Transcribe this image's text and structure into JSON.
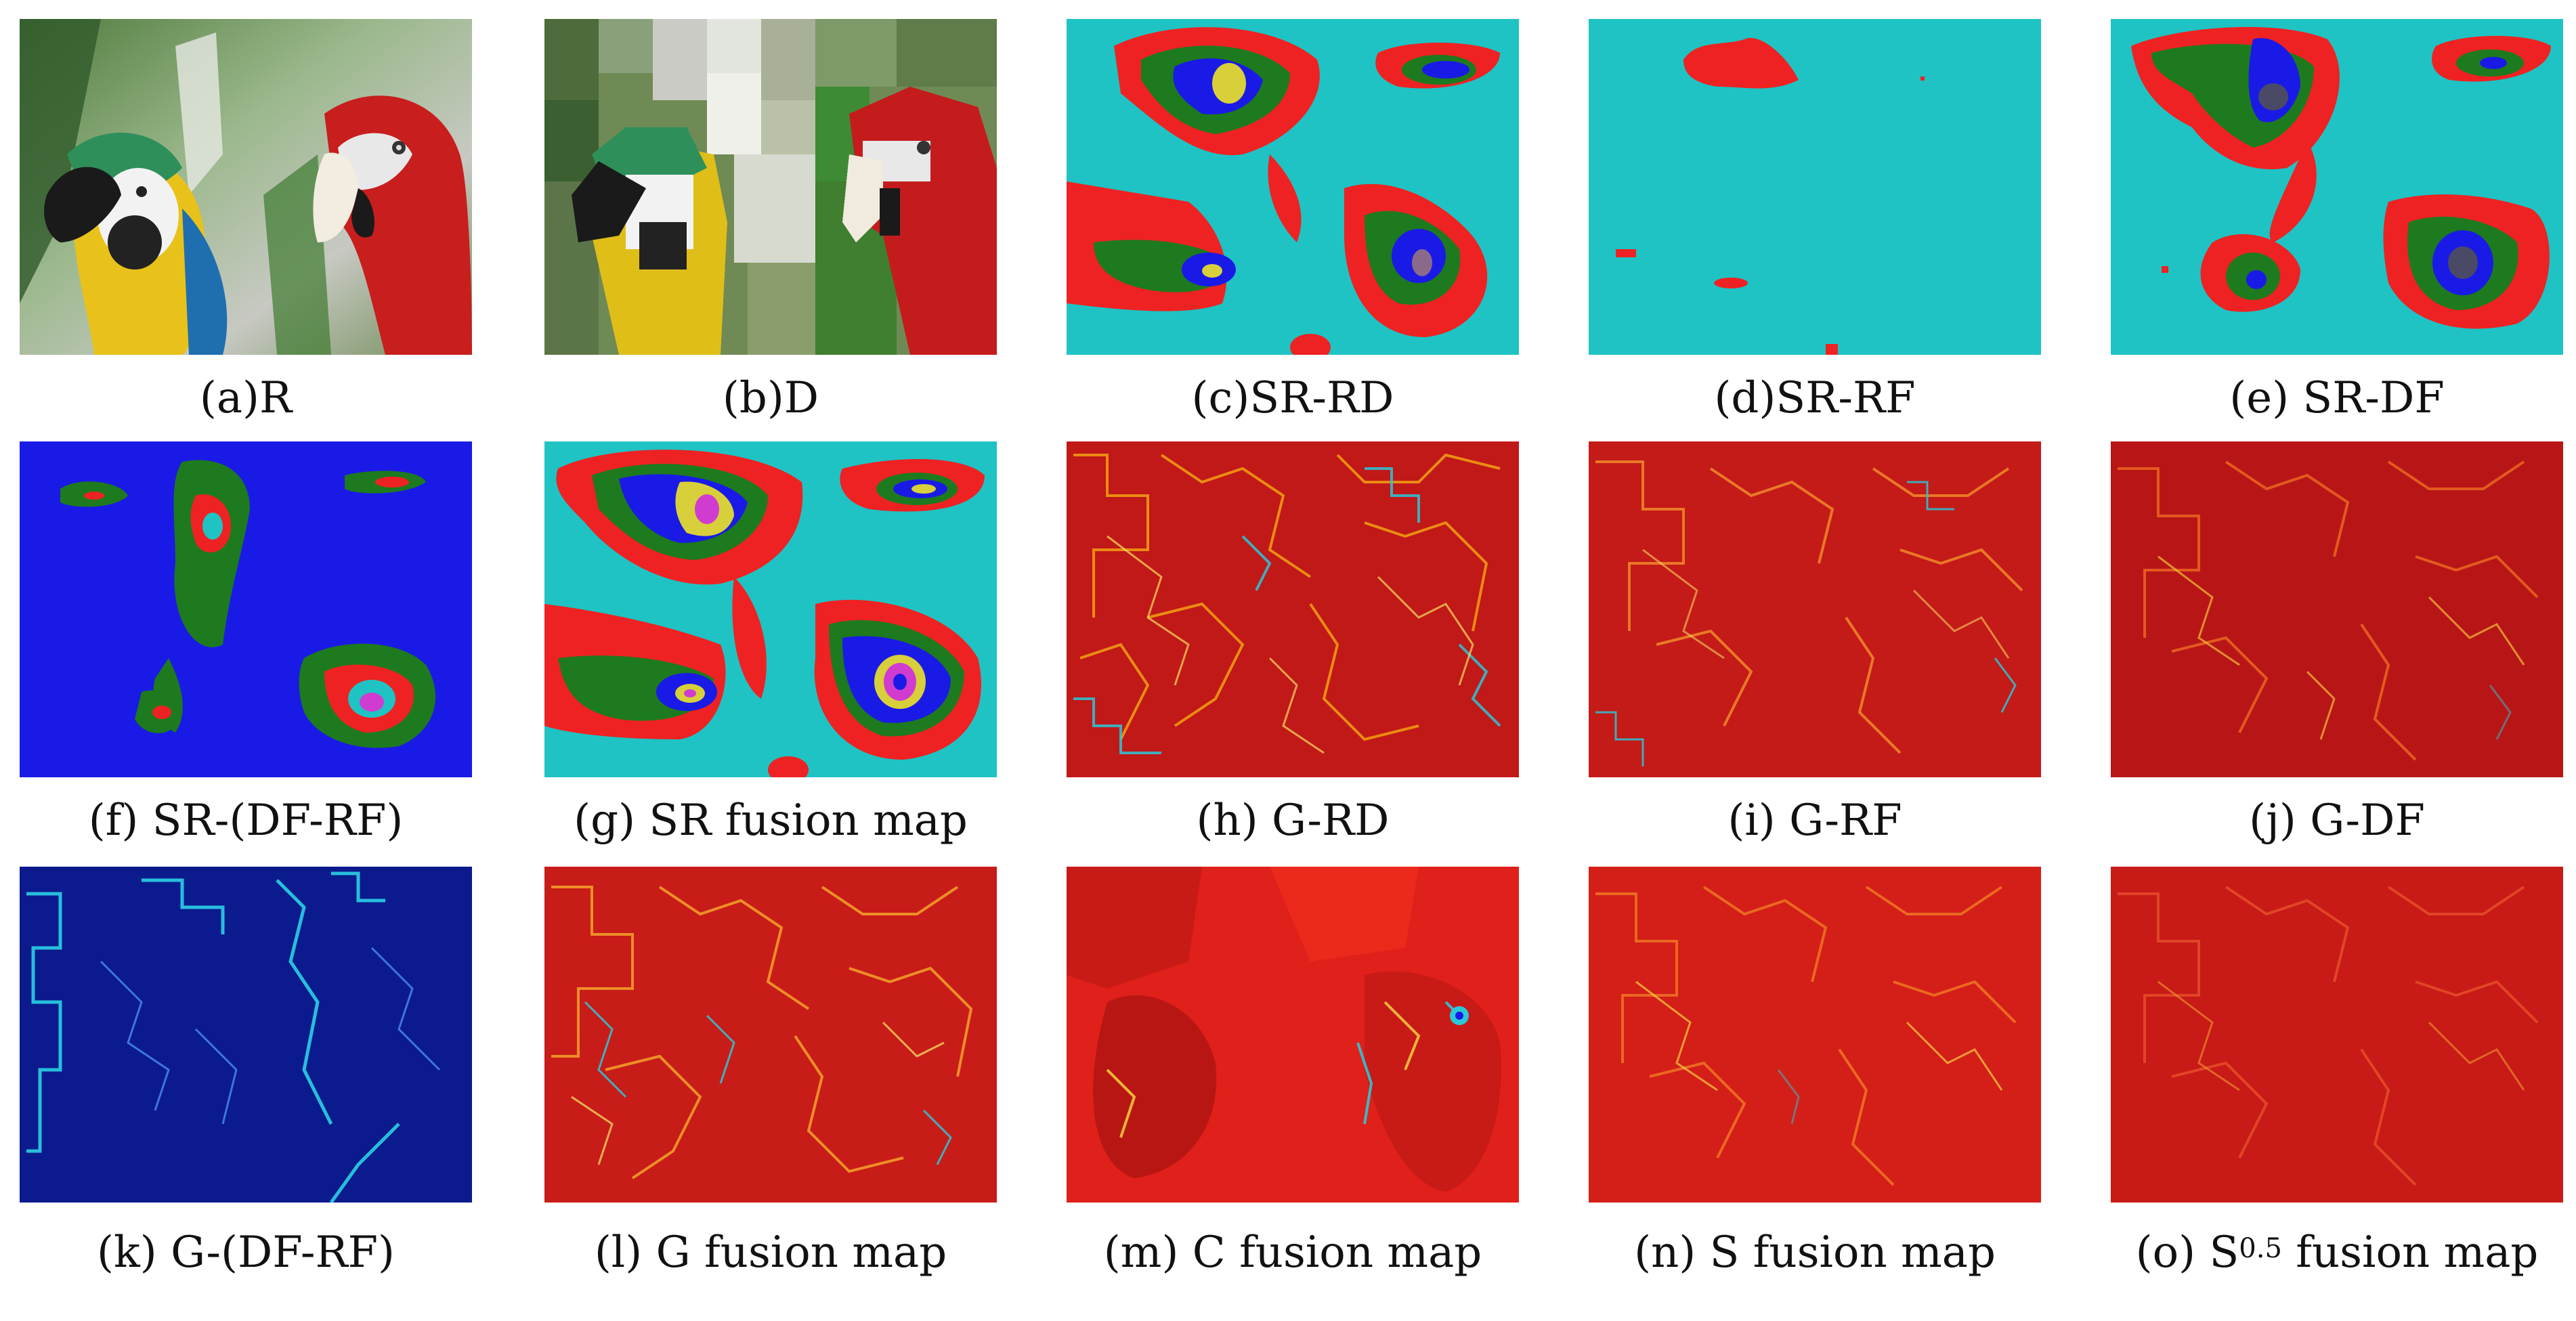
{
  "figure": {
    "panels": [
      {
        "id": "a",
        "caption": "(a)R",
        "kind": "photo"
      },
      {
        "id": "b",
        "caption": "(b)D",
        "kind": "pixelated-photo"
      },
      {
        "id": "c",
        "caption": "(c)SR-RD",
        "kind": "sr-map"
      },
      {
        "id": "d",
        "caption": "(d)SR-RF",
        "kind": "sr-map-sparse"
      },
      {
        "id": "e",
        "caption": "(e) SR-DF",
        "kind": "sr-map"
      },
      {
        "id": "f",
        "caption": "(f) SR-(DF-RF)",
        "kind": "sr-map-blue"
      },
      {
        "id": "g",
        "caption": "(g) SR fusion map",
        "kind": "sr-map"
      },
      {
        "id": "h",
        "caption": "(h) G-RD",
        "kind": "gradient-map"
      },
      {
        "id": "i",
        "caption": "(i) G-RF",
        "kind": "gradient-map"
      },
      {
        "id": "j",
        "caption": "(j) G-DF",
        "kind": "gradient-map"
      },
      {
        "id": "k",
        "caption": "(k) G-(DF-RF)",
        "kind": "gradient-map-blue"
      },
      {
        "id": "l",
        "caption": "(l) G fusion map",
        "kind": "gradient-map"
      },
      {
        "id": "m",
        "caption": "(m) C fusion map",
        "kind": "color-map"
      },
      {
        "id": "n",
        "caption": "(n) S fusion map",
        "kind": "gradient-map"
      },
      {
        "id": "o",
        "caption_prefix": "(o) S",
        "caption_sup": "0.5",
        "caption_suffix": " fusion map",
        "kind": "gradient-map"
      }
    ]
  },
  "colors": {
    "cyan_background": "#1fc3c4",
    "red": "#ee2222",
    "green": "#1e7a1e",
    "blue": "#1a1ae6",
    "yellow": "#d8d03a",
    "magenta": "#d03cd0",
    "dark_red": "#b41010",
    "navy": "#0b1a8c"
  }
}
